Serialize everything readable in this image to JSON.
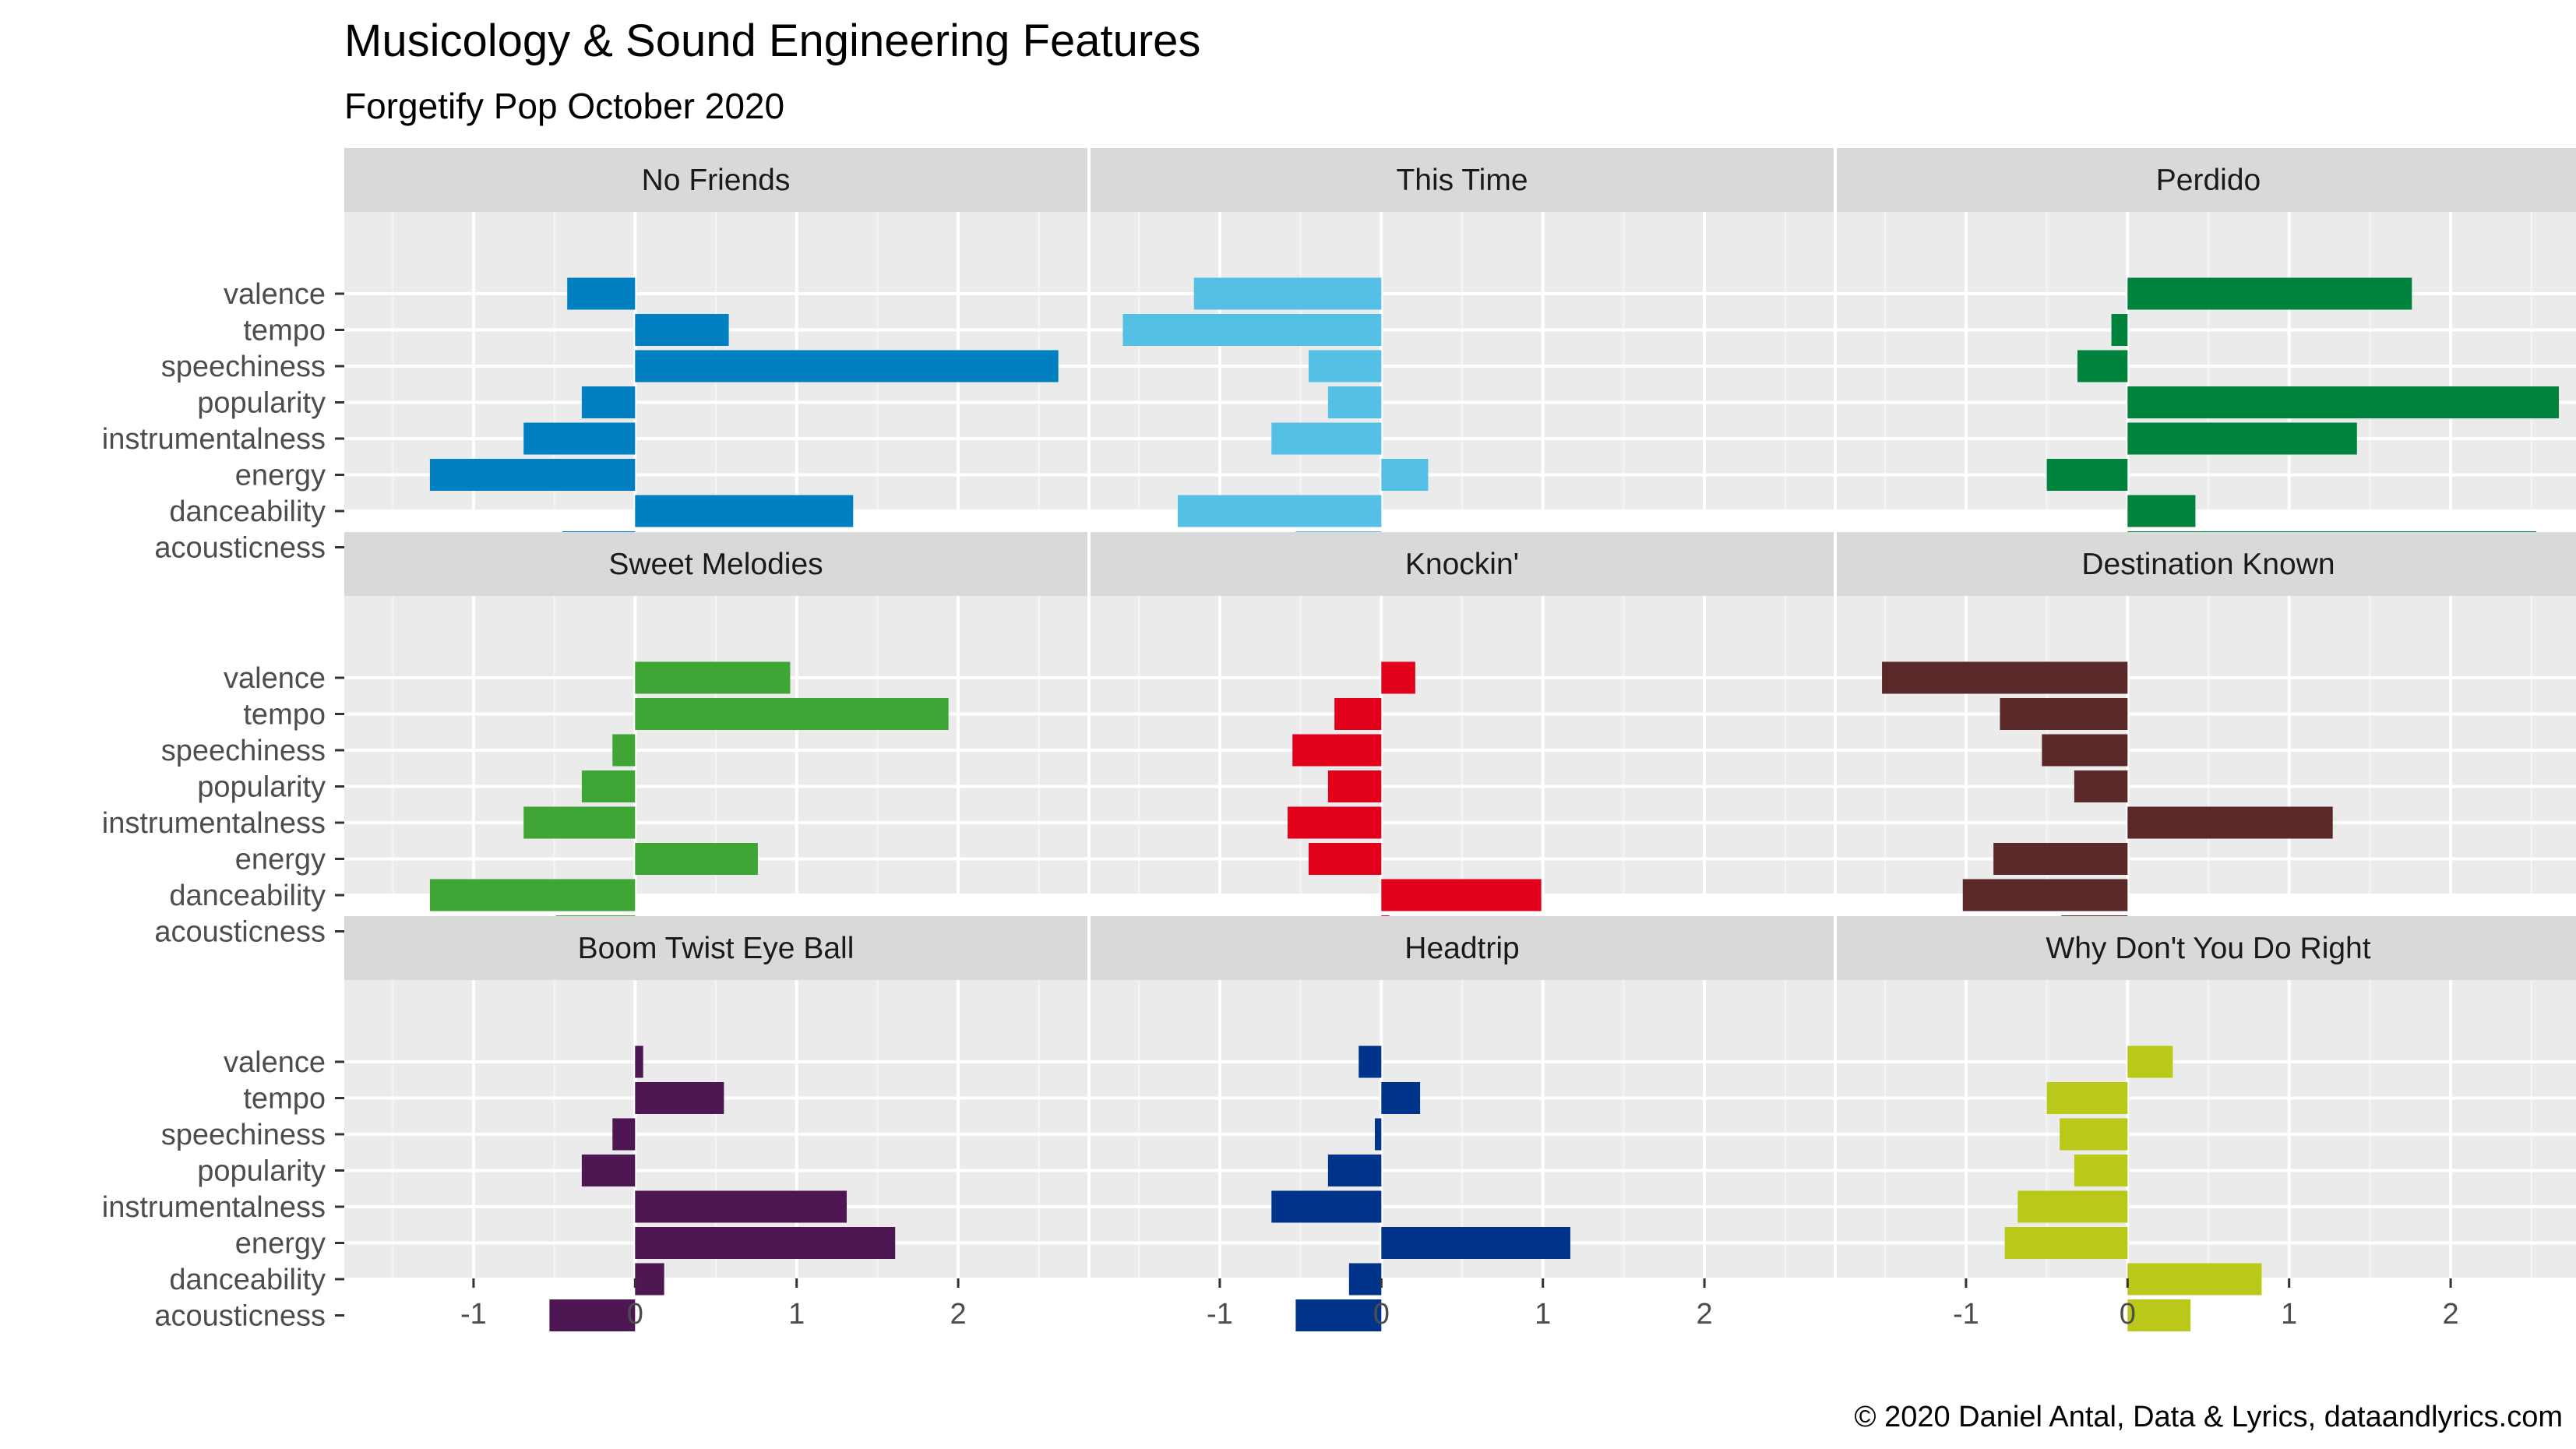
{
  "title": "Musicology & Sound Engineering Features",
  "subtitle": "Forgetify Pop October 2020",
  "caption": "© 2020 Daniel Antal, Data & Lyrics, dataandlyrics.com",
  "chart_data": {
    "type": "bar",
    "orientation": "horizontal",
    "categories": [
      "valence",
      "tempo",
      "speechiness",
      "popularity",
      "instrumentalness",
      "energy",
      "danceability",
      "acousticness"
    ],
    "xlim": [
      -1.8,
      2.8
    ],
    "xticks": [
      -1,
      0,
      1,
      2
    ],
    "xtick_labels": [
      "-1",
      "0",
      "1",
      "2"
    ],
    "grid": true,
    "panels": [
      {
        "name": "No Friends",
        "color": "#0080C0",
        "values": [
          -0.42,
          0.58,
          2.62,
          -0.33,
          -0.69,
          -1.27,
          1.35,
          -0.45
        ]
      },
      {
        "name": "This Time",
        "color": "#54C0E6",
        "values": [
          -1.16,
          -1.6,
          -0.45,
          -0.33,
          -0.68,
          0.29,
          -1.26,
          -0.53
        ]
      },
      {
        "name": "Perdido",
        "color": "#00843D",
        "values": [
          1.76,
          -0.1,
          -0.31,
          2.67,
          1.42,
          -0.5,
          0.42,
          2.53
        ]
      },
      {
        "name": "Sweet Melodies",
        "color": "#3FA535",
        "values": [
          0.96,
          1.94,
          -0.14,
          -0.33,
          -0.69,
          0.76,
          -1.27,
          -0.49
        ]
      },
      {
        "name": "Knockin'",
        "color": "#E2001A",
        "values": [
          0.21,
          -0.29,
          -0.55,
          -0.33,
          -0.58,
          -0.45,
          0.99,
          0.05
        ]
      },
      {
        "name": "Destination Known",
        "color": "#5A2828",
        "values": [
          -1.52,
          -0.79,
          -0.53,
          -0.33,
          1.27,
          -0.83,
          -1.02,
          -0.41
        ]
      },
      {
        "name": "Boom Twist Eye Ball",
        "color": "#4F1654",
        "values": [
          0.05,
          0.55,
          -0.14,
          -0.33,
          1.31,
          1.61,
          0.18,
          -0.53
        ]
      },
      {
        "name": "Headtrip",
        "color": "#00348A",
        "values": [
          -0.14,
          0.24,
          -0.04,
          -0.33,
          -0.68,
          1.17,
          -0.2,
          -0.53
        ]
      },
      {
        "name": "Why Don't You Do Right",
        "color": "#BAC81A",
        "values": [
          0.28,
          -0.5,
          -0.42,
          -0.33,
          -0.68,
          -0.76,
          0.83,
          0.39
        ]
      }
    ]
  }
}
